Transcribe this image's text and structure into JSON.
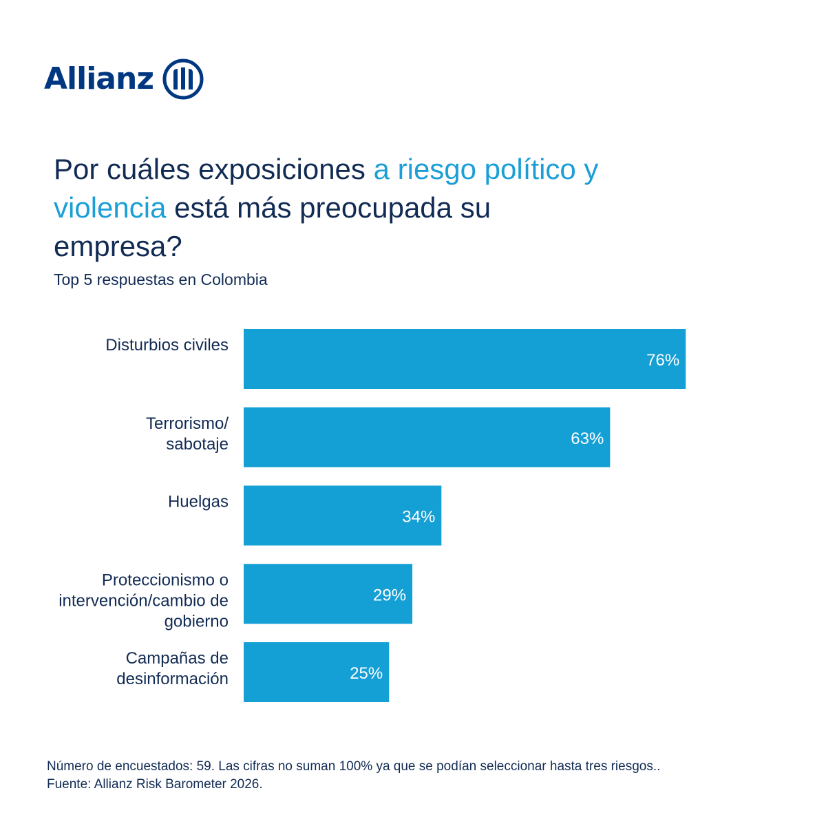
{
  "brand": {
    "name": "Allianz",
    "logo_icon": "allianz-eagle-pillars-icon",
    "color": "#003781"
  },
  "colors": {
    "bar": "#149fd5",
    "text": "#122b54",
    "accent": "#1b9fd6"
  },
  "chart_data": {
    "type": "bar",
    "orientation": "horizontal",
    "title_parts": [
      {
        "text": "Por cuáles exposiciones ",
        "accent": false
      },
      {
        "text": "a riesgo político y violencia",
        "accent": true
      },
      {
        "text": " está más preocupada su empresa?",
        "accent": false
      }
    ],
    "subtitle": "Top 5 respuestas en Colombia",
    "categories": [
      [
        "Disturbios civiles"
      ],
      [
        "Terrorismo/",
        "sabotaje"
      ],
      [
        "Huelgas"
      ],
      [
        "Proteccionismo o",
        "intervención/cambio de",
        "gobierno"
      ],
      [
        "Campañas de",
        "desinformación"
      ]
    ],
    "values": [
      76,
      63,
      34,
      29,
      25
    ],
    "value_labels": [
      "76%",
      "63%",
      "34%",
      "29%",
      "25%"
    ],
    "unit": "%",
    "grid": false,
    "legend": false
  },
  "footnote": {
    "line1": "Número de encuestados: 59. Las cifras no suman 100% ya que se podían seleccionar hasta tres riesgos..",
    "line2": "Fuente: Allianz Risk Barometer 2026."
  }
}
